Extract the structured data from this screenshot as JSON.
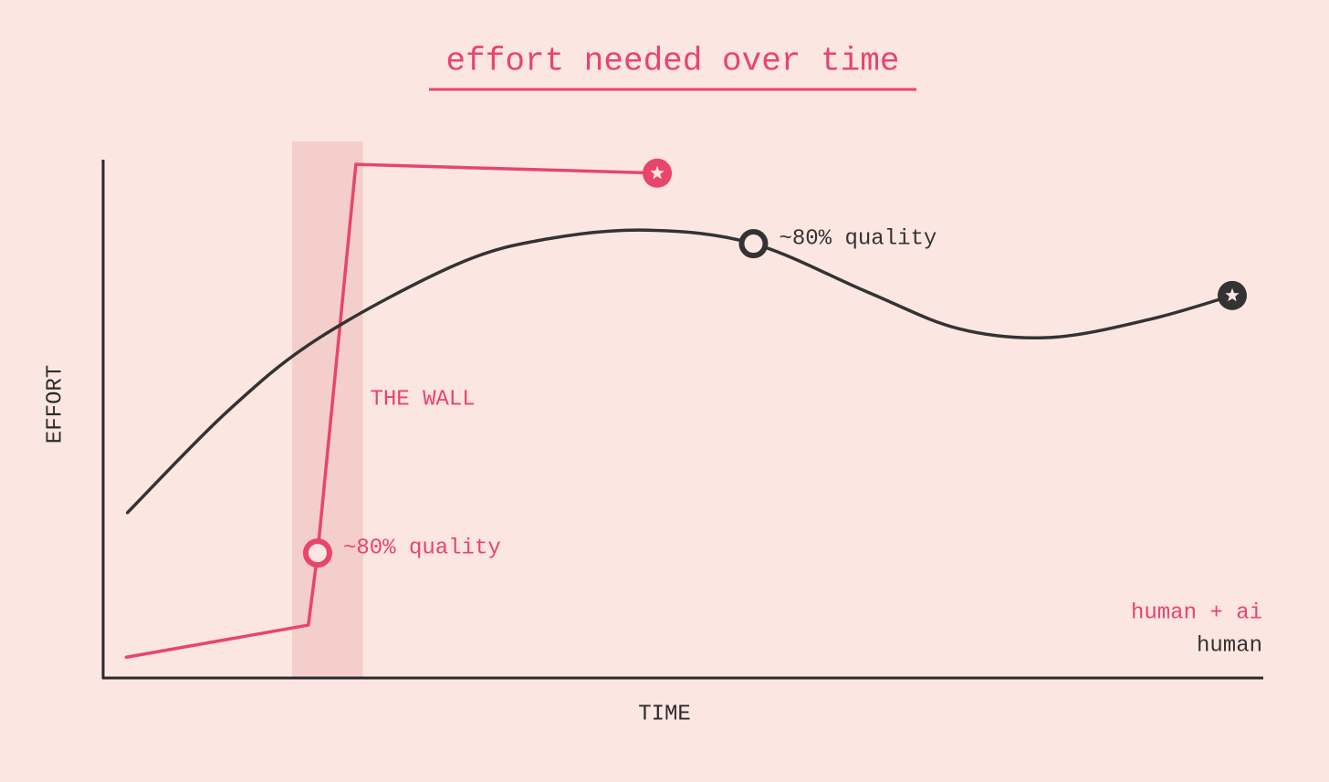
{
  "chart_data": {
    "type": "line",
    "title": "effort needed over time",
    "x_label": "TIME",
    "y_label": "EFFORT",
    "xlim": [
      0,
      100
    ],
    "ylim": [
      0,
      100
    ],
    "legend": "bottom-right",
    "wall": {
      "label": "THE WALL",
      "x": [
        16.3,
        22.4
      ],
      "color": "#f2c6c2"
    },
    "series": [
      {
        "name": "human + ai",
        "color": "#e8456b",
        "smooth": false,
        "x": [
          2,
          17.7,
          18.5,
          21.8,
          47.8
        ],
        "values": [
          4,
          10.2,
          24.1,
          99.1,
          97.4
        ],
        "quality_point": 2,
        "quality_label": "~80% quality",
        "goal_point": 4
      },
      {
        "name": "human",
        "color": "#333333",
        "smooth": true,
        "x": [
          2.1,
          10.8,
          18.7,
          30.5,
          38.3,
          47.0,
          56.1,
          65.9,
          73.8,
          81.7,
          90.3,
          97.4
        ],
        "values": [
          31.9,
          51.6,
          65.7,
          79.8,
          84.7,
          86.4,
          83.8,
          74.5,
          67.4,
          65.7,
          69.2,
          73.8
        ],
        "quality_point": 6,
        "quality_label": "~80% quality",
        "goal_point": 11
      }
    ]
  }
}
